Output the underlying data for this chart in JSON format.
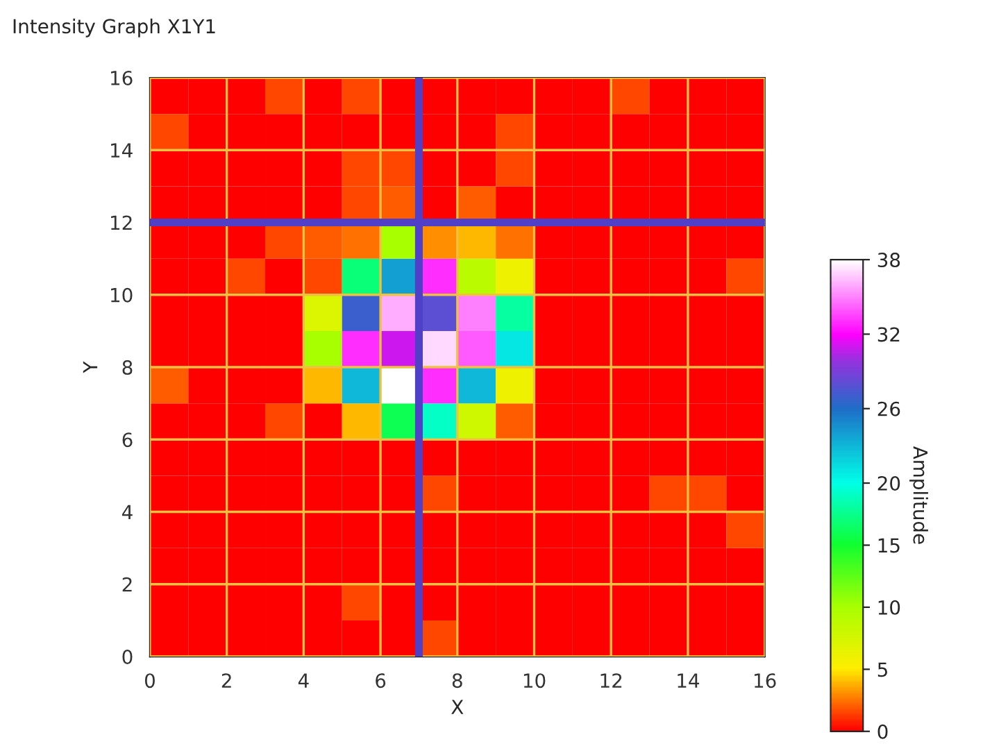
{
  "chart_data": {
    "type": "heatmap",
    "title": "Intensity Graph X1Y1",
    "xlabel": "X",
    "ylabel": "Y",
    "clabel": "Amplitude",
    "xlim": [
      0,
      16
    ],
    "xticks": [
      0,
      2,
      4,
      6,
      8,
      10,
      12,
      14,
      16
    ],
    "ylim": [
      0,
      16
    ],
    "yticks": [
      0,
      2,
      4,
      6,
      8,
      10,
      12,
      14,
      16
    ],
    "clim": [
      0,
      38
    ],
    "cticks": [
      0,
      5,
      10,
      15,
      20,
      26,
      32,
      38
    ],
    "grid": true,
    "ref_lines": [
      {
        "axis": "x",
        "value": 7,
        "color": "#5040c8"
      },
      {
        "axis": "y",
        "value": 12,
        "color": "#5040c8"
      }
    ],
    "cells": [
      [
        0,
        0,
        0,
        1.5,
        0,
        1.5,
        0,
        0,
        0,
        0,
        0,
        0,
        1.5,
        0,
        0,
        0
      ],
      [
        1.5,
        0,
        0,
        0,
        0,
        0,
        0,
        0,
        0,
        1.5,
        0,
        0,
        0,
        0,
        0,
        0
      ],
      [
        0,
        0,
        0,
        0,
        0,
        1.5,
        1.5,
        0,
        0,
        1.5,
        0,
        0,
        0,
        0,
        0,
        0
      ],
      [
        0,
        0,
        0,
        0,
        0,
        1.5,
        2,
        0,
        2,
        0,
        0,
        0,
        0,
        0,
        0,
        0
      ],
      [
        0,
        0,
        0,
        1.5,
        2,
        2.5,
        10,
        3,
        4,
        2.5,
        0,
        0,
        0,
        0,
        0,
        0
      ],
      [
        0,
        0,
        1.5,
        0,
        1.5,
        17,
        24,
        33,
        9,
        6,
        0,
        0,
        0,
        0,
        0,
        1.5
      ],
      [
        0,
        0,
        0,
        0,
        7,
        27,
        36,
        28,
        35,
        18,
        0,
        0,
        0,
        0,
        0,
        0
      ],
      [
        0,
        0,
        0,
        0,
        10,
        33,
        31,
        37,
        34,
        21,
        0,
        0,
        0,
        0,
        0,
        0
      ],
      [
        2,
        0,
        0,
        0,
        4,
        23,
        38,
        33,
        23,
        6,
        0,
        0,
        0,
        0,
        0,
        0
      ],
      [
        0,
        0,
        0,
        1.5,
        0,
        4,
        16,
        19,
        8,
        2,
        0,
        0,
        0,
        0,
        0,
        0
      ],
      [
        0,
        0,
        0,
        0,
        0,
        0,
        0,
        0,
        0,
        0,
        0,
        0,
        0,
        0,
        0,
        0
      ],
      [
        0,
        0,
        0,
        0,
        0,
        0,
        0,
        1.5,
        0,
        0,
        0,
        0,
        0,
        1.5,
        1.5,
        0
      ],
      [
        0,
        0,
        0,
        0,
        0,
        0,
        0,
        0,
        0,
        0,
        0,
        0,
        0,
        0,
        0,
        1.5
      ],
      [
        0,
        0,
        0,
        0,
        0,
        0,
        0,
        0,
        0,
        0,
        0,
        0,
        0,
        0,
        0,
        0
      ],
      [
        0,
        0,
        0,
        0,
        0,
        1.5,
        0,
        0,
        0,
        0,
        0,
        0,
        0,
        0,
        0,
        0
      ],
      [
        0,
        0,
        0,
        0,
        0,
        0,
        0,
        1.5,
        0,
        0,
        0,
        0,
        0,
        0,
        0,
        0
      ]
    ]
  }
}
